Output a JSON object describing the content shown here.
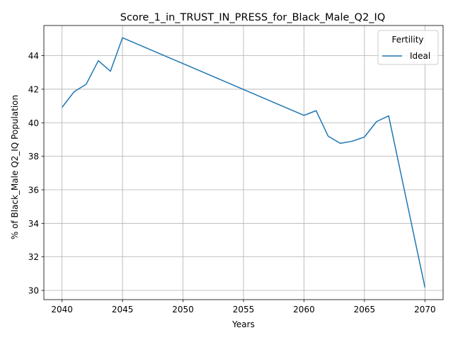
{
  "chart_data": {
    "type": "line",
    "title": "Score_1_in_TRUST_IN_PRESS_for_Black_Male_Q2_IQ",
    "xlabel": "Years",
    "ylabel": "% of Black_Male Q2_IQ Population",
    "xlim": [
      2038.5,
      2071.5
    ],
    "ylim": [
      29.45,
      45.8
    ],
    "xticks": [
      2040,
      2045,
      2050,
      2055,
      2060,
      2065,
      2070
    ],
    "yticks": [
      30,
      32,
      34,
      36,
      38,
      40,
      42,
      44
    ],
    "grid": true,
    "legend": {
      "title": "Fertility",
      "position": "top-right"
    },
    "x": [
      2040,
      2041,
      2042,
      2043,
      2044,
      2045,
      2060,
      2061,
      2062,
      2063,
      2064,
      2065,
      2066,
      2067,
      2070
    ],
    "series": [
      {
        "name": "Ideal",
        "color": "#1f77b4",
        "values": [
          40.92,
          41.85,
          42.3,
          43.7,
          43.07,
          45.07,
          40.44,
          40.72,
          39.2,
          38.77,
          38.9,
          39.15,
          40.07,
          40.41,
          30.18
        ]
      }
    ]
  }
}
